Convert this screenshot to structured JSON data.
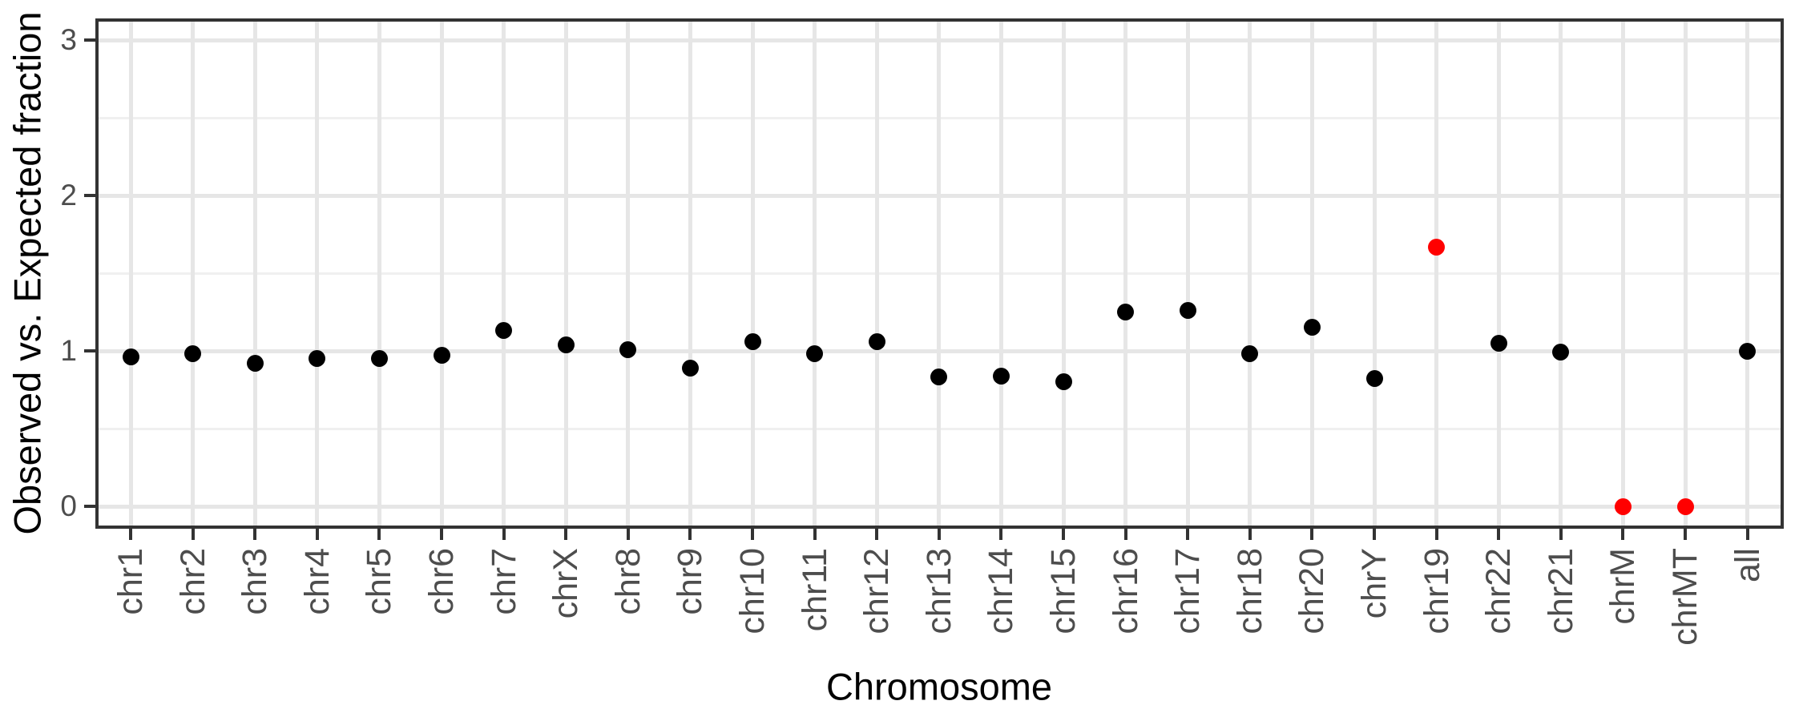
{
  "figure": {
    "background": "#FFFFFF"
  },
  "chart_data": {
    "type": "scatter",
    "title": "",
    "xlabel": "Chromosome",
    "ylabel": "Observed vs. Expected fraction",
    "categories": [
      "chr1",
      "chr2",
      "chr3",
      "chr4",
      "chr5",
      "chr6",
      "chr7",
      "chrX",
      "chr8",
      "chr9",
      "chr10",
      "chr11",
      "chr12",
      "chr13",
      "chr14",
      "chr15",
      "chr16",
      "chr17",
      "chr18",
      "chr20",
      "chrY",
      "chr19",
      "chr22",
      "chr21",
      "chrM",
      "chrMT",
      "all"
    ],
    "values": [
      0.96,
      0.98,
      0.92,
      0.95,
      0.95,
      0.97,
      1.13,
      1.04,
      1.01,
      0.89,
      1.06,
      0.98,
      1.06,
      0.83,
      0.84,
      0.8,
      1.25,
      1.26,
      0.98,
      1.15,
      0.82,
      1.67,
      1.05,
      0.99,
      0.0,
      0.0,
      1.0
    ],
    "point_colors": [
      "#000000",
      "#000000",
      "#000000",
      "#000000",
      "#000000",
      "#000000",
      "#000000",
      "#000000",
      "#000000",
      "#000000",
      "#000000",
      "#000000",
      "#000000",
      "#000000",
      "#000000",
      "#000000",
      "#000000",
      "#000000",
      "#000000",
      "#000000",
      "#000000",
      "#FF0000",
      "#000000",
      "#000000",
      "#FF0000",
      "#FF0000",
      "#000000"
    ],
    "highlighted_categories": [
      "chr19",
      "chrM",
      "chrMT"
    ],
    "default_color": "#000000",
    "highlight_color": "#FF0000",
    "yticks": [
      0,
      1,
      2,
      3
    ],
    "yticks_minor": [
      0.5,
      1.5,
      2.5
    ],
    "ylim": [
      -0.15,
      3.15
    ],
    "grid": "on",
    "legend": "none",
    "grid_color": "#E6E6E6",
    "panel_border_color": "#333333",
    "tick_color": "#333333",
    "tick_label_color": "#4D4D4D",
    "axis_title_color": "#000000",
    "panel_background": "#FFFFFF"
  }
}
